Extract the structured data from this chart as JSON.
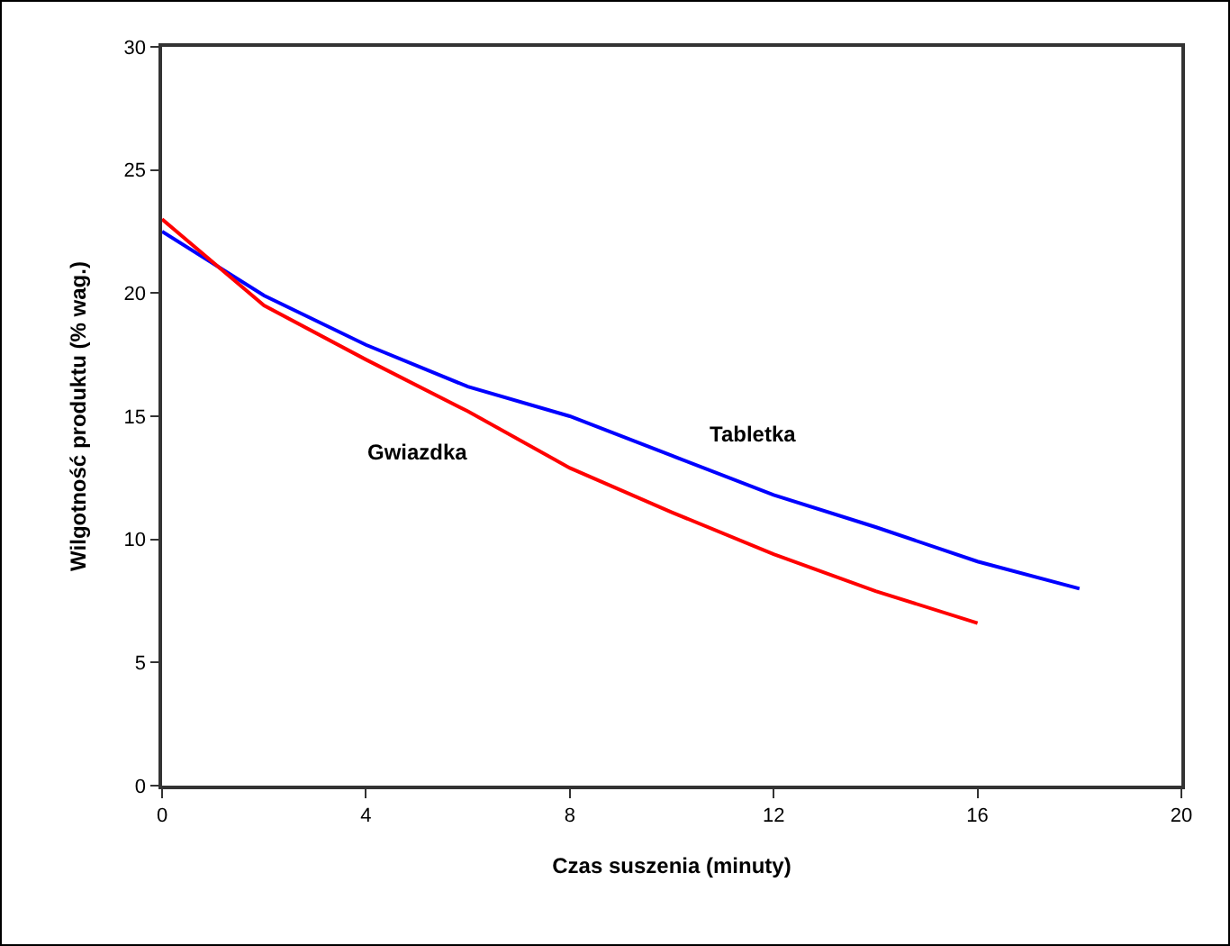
{
  "chart_data": {
    "type": "line",
    "xlabel": "Czas suszenia (minuty)",
    "ylabel": "Wilgotność produktu (% wag.)",
    "x": [
      0,
      2,
      4,
      6,
      8,
      10,
      12,
      14,
      16,
      18
    ],
    "series": [
      {
        "name": "Tabletka",
        "color": "#0000ff",
        "values": [
          22.5,
          19.9,
          17.9,
          16.2,
          15.0,
          13.4,
          11.8,
          10.5,
          9.1,
          8.0
        ]
      },
      {
        "name": "Gwiazdka",
        "color": "#ff0000",
        "values": [
          23.0,
          19.5,
          17.3,
          15.2,
          12.9,
          11.1,
          9.4,
          7.9,
          6.6,
          null
        ]
      }
    ],
    "xlim": [
      0,
      20
    ],
    "xticks": [
      0,
      4,
      8,
      12,
      16,
      20
    ],
    "ylim": [
      0,
      30
    ],
    "yticks": [
      0,
      5,
      10,
      15,
      20,
      25,
      30
    ],
    "grid": false,
    "legend": false,
    "marker": "none",
    "line_style": "solid"
  }
}
